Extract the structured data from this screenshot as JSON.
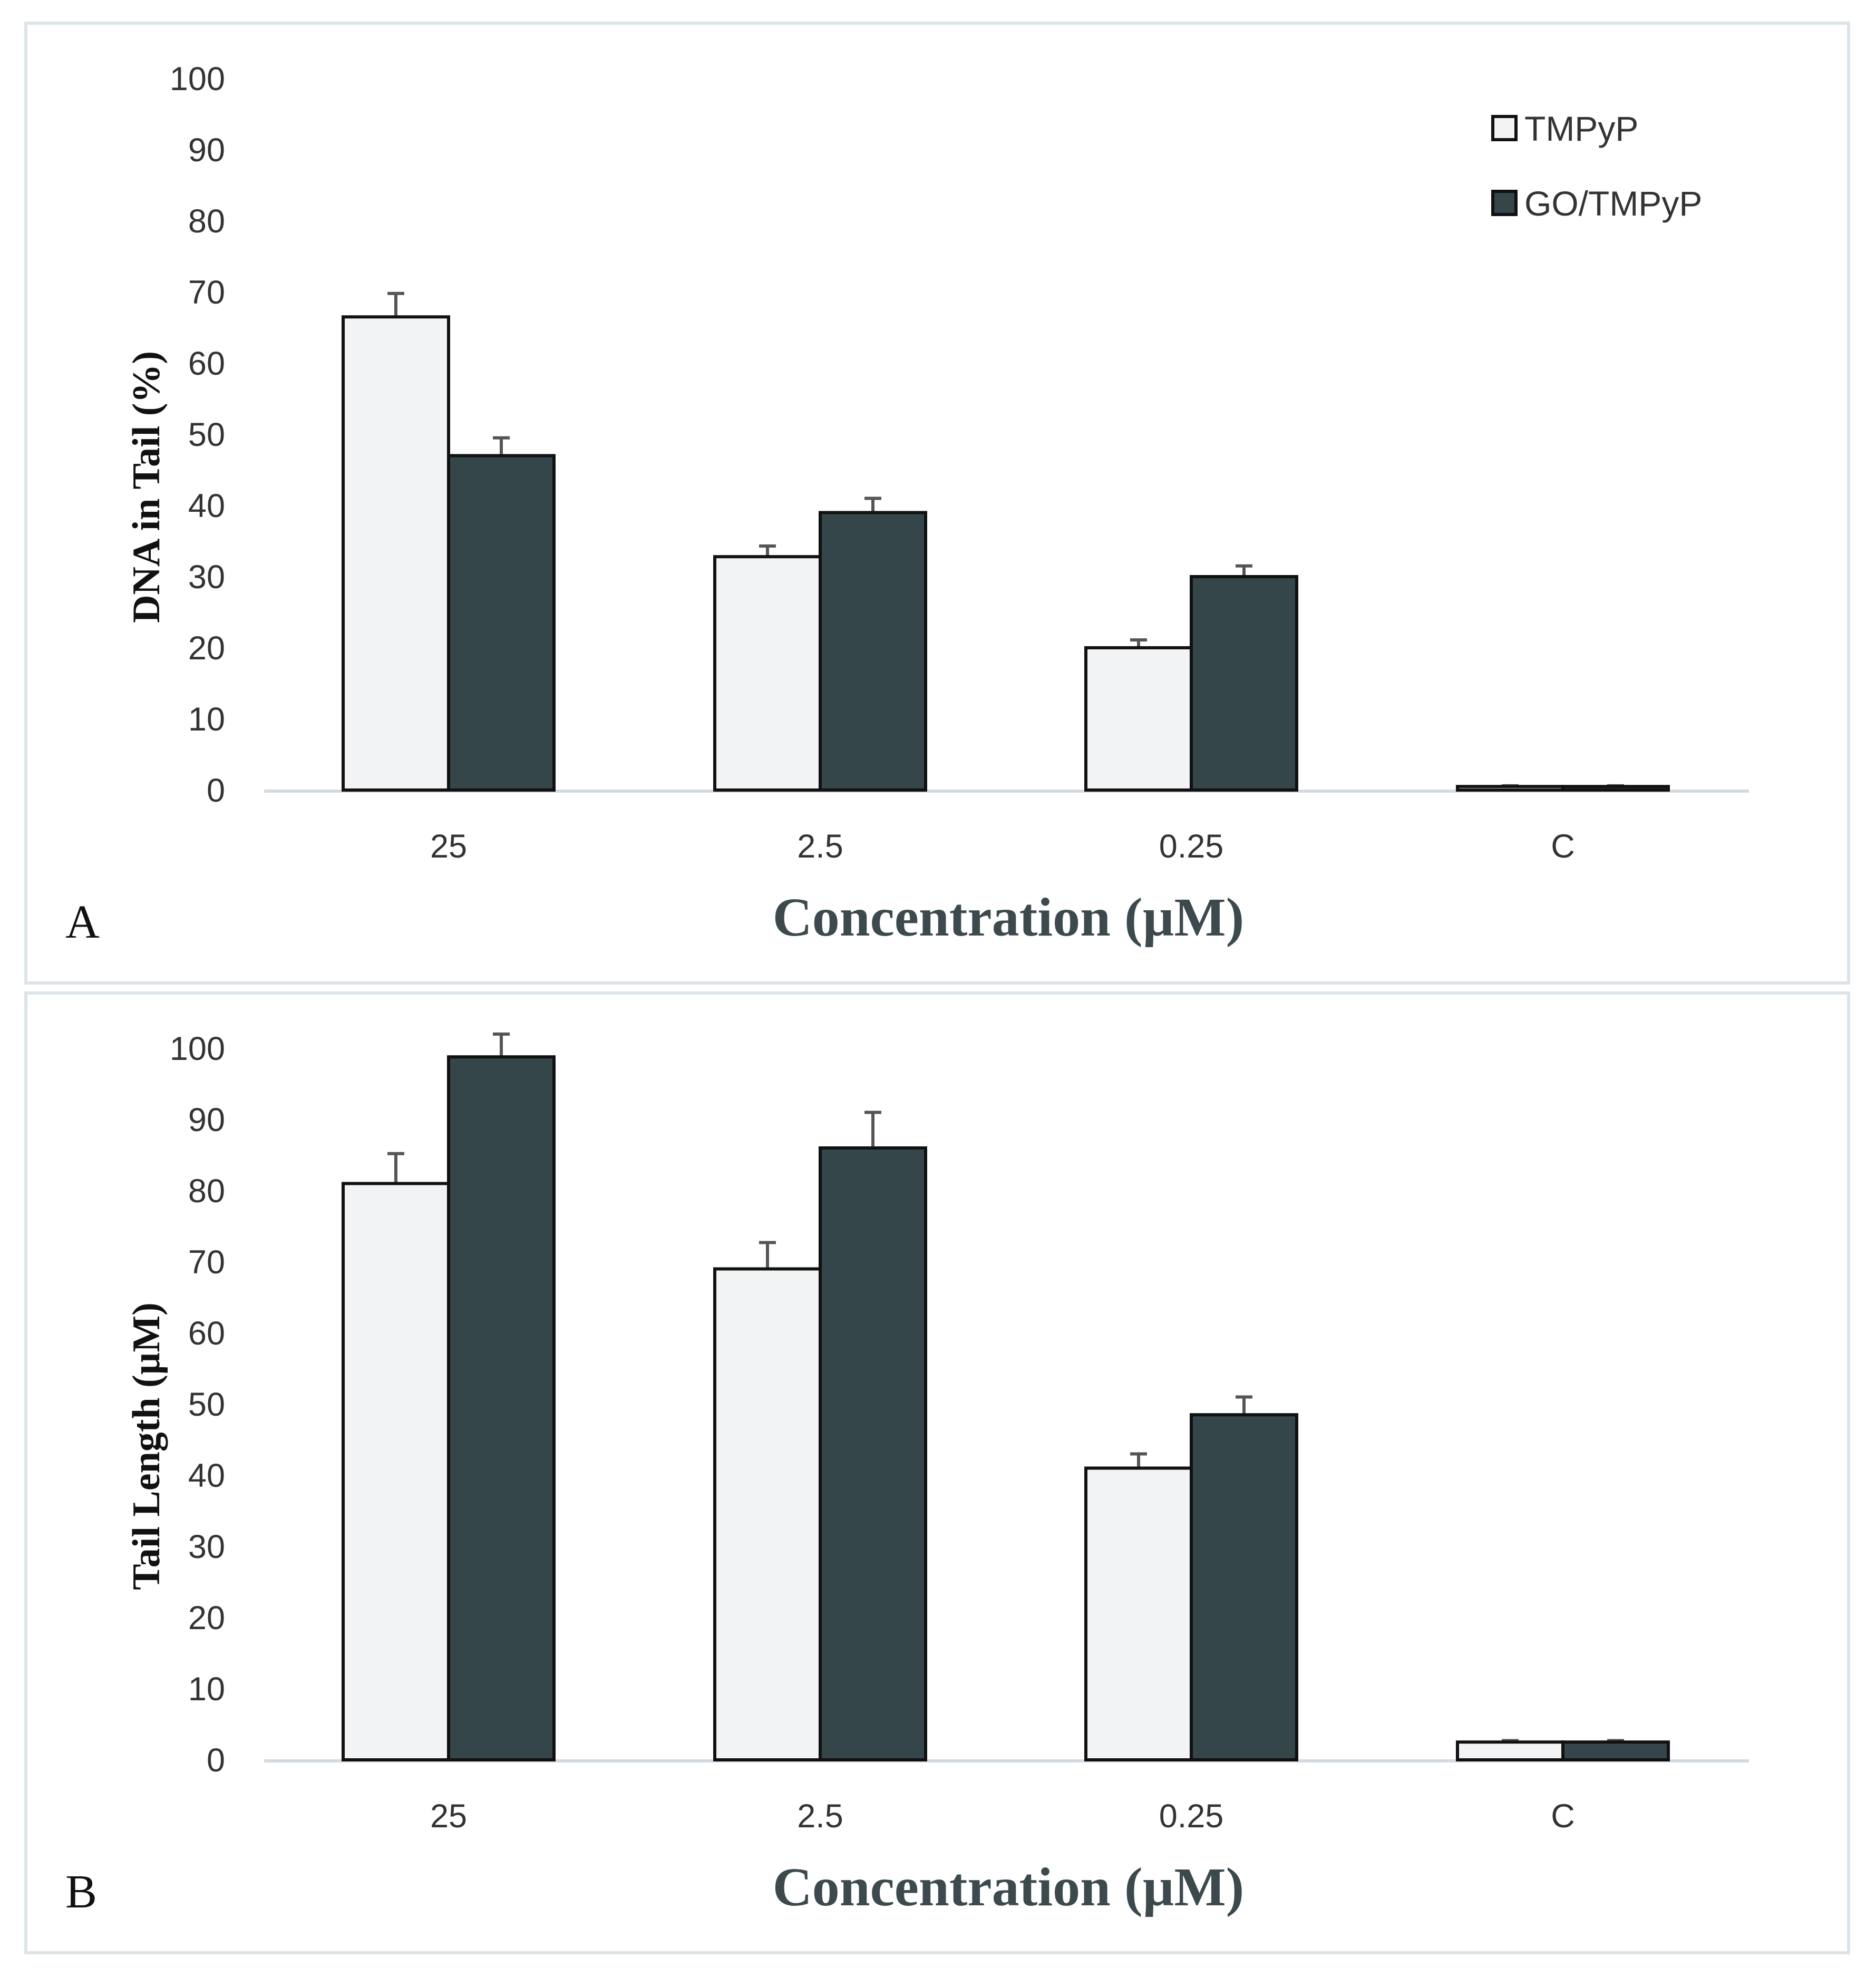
{
  "chart_data": [
    {
      "type": "bar",
      "panel_label": "A",
      "title": "",
      "xlabel": "Concentration (µM)",
      "ylabel": "DNA in Tail (%)",
      "ylim": [
        0,
        100
      ],
      "yticks": [
        "0",
        "10",
        "20",
        "30",
        "40",
        "50",
        "60",
        "70",
        "80",
        "90",
        "100"
      ],
      "categories": [
        "25",
        "2.5",
        "0.25",
        "C"
      ],
      "legend": {
        "position": "top-right",
        "show": true
      },
      "grid": false,
      "series": [
        {
          "name": "TMPyP",
          "color": "#f1f3f4",
          "values": [
            66.5,
            32.8,
            20.0,
            0.5
          ],
          "errors": [
            3.3,
            1.5,
            1.1,
            0.1
          ]
        },
        {
          "name": "GO/TMPyP",
          "color": "#344649",
          "values": [
            47.0,
            39.0,
            30.0,
            0.5
          ],
          "errors": [
            2.5,
            2.0,
            1.5,
            0.1
          ]
        }
      ]
    },
    {
      "type": "bar",
      "panel_label": "B",
      "title": "",
      "xlabel": "Concentration (µM)",
      "ylabel": "Tail Length (µM)",
      "ylim": [
        0,
        100
      ],
      "yticks": [
        "0",
        "10",
        "20",
        "30",
        "40",
        "50",
        "60",
        "70",
        "80",
        "90",
        "100"
      ],
      "categories": [
        "25",
        "2.5",
        "0.25",
        "C"
      ],
      "legend": {
        "show": false
      },
      "grid": false,
      "series": [
        {
          "name": "TMPyP",
          "color": "#f1f3f4",
          "values": [
            81.0,
            69.0,
            41.0,
            2.5
          ],
          "errors": [
            4.2,
            3.7,
            2.0,
            0.2
          ]
        },
        {
          "name": "GO/TMPyP",
          "color": "#344649",
          "values": [
            98.8,
            86.0,
            48.5,
            2.5
          ],
          "errors": [
            3.2,
            5.0,
            2.5,
            0.2
          ]
        }
      ]
    }
  ]
}
